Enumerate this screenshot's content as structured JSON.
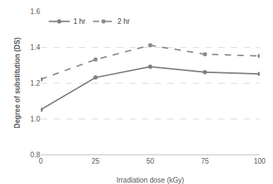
{
  "chart_data": {
    "type": "line",
    "x_label": "Irradiation dose (kGy)",
    "y_label": "Degree of substitution (DS)",
    "x": [
      0,
      25,
      50,
      75,
      100
    ],
    "series": [
      {
        "name": "1 hr",
        "color": "#7f7f7f",
        "line_style": "solid",
        "marker": "circle",
        "values": [
          1.05,
          1.23,
          1.29,
          1.26,
          1.25
        ]
      },
      {
        "name": "2 hr",
        "color": "#8c8c8c",
        "line_style": "dashed",
        "marker": "circle",
        "values": [
          1.22,
          1.33,
          1.41,
          1.36,
          1.35
        ]
      }
    ],
    "xlim": [
      0,
      100
    ],
    "xticks": [
      0,
      25,
      50,
      75,
      100
    ],
    "ylim": [
      0.8,
      1.6
    ],
    "yticks": [
      0.8,
      {
        "value": 1,
        "label": "1.0"
      },
      1.2,
      1.4,
      1.6
    ],
    "grid": true,
    "legend": "top left"
  }
}
